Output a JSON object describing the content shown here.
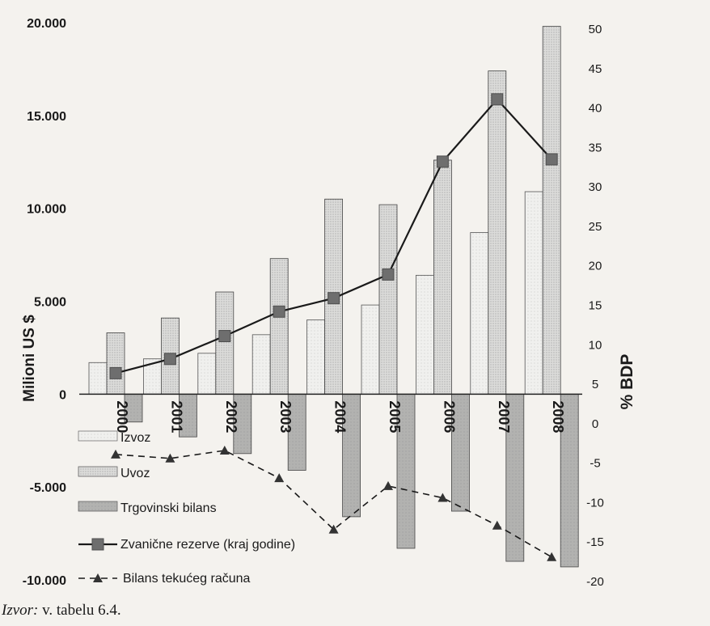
{
  "source": {
    "label": "Izvor:",
    "text": " v. tabelu 6.4."
  },
  "chart_data": {
    "type": "bar",
    "title": "",
    "categories": [
      "2000",
      "2001",
      "2002",
      "2003",
      "2004",
      "2005",
      "2006",
      "2007",
      "2008"
    ],
    "ylabel_left": "Milioni US $",
    "ylabel_right": "% BDP",
    "left_ticks": [
      "20.000",
      "15.000",
      "10.000",
      "5.000",
      "0",
      "-5.000",
      "-10.000"
    ],
    "right_ticks": [
      "50",
      "45",
      "40",
      "35",
      "30",
      "25",
      "20",
      "15",
      "10",
      "5",
      "0",
      "-5",
      "-10",
      "-15",
      "-20"
    ],
    "ylim_left": [
      -10000,
      20000
    ],
    "ylim_right": [
      -20,
      50
    ],
    "series": [
      {
        "name": "Izvoz",
        "type": "bar",
        "axis": "left",
        "color": "#ececec",
        "values": [
          1700,
          1900,
          2200,
          3200,
          4000,
          4800,
          6400,
          8700,
          10900
        ]
      },
      {
        "name": "Uvoz",
        "type": "bar",
        "axis": "left",
        "color": "#d6d6d6",
        "values": [
          3300,
          4100,
          5500,
          7300,
          10500,
          10200,
          12600,
          17400,
          19800
        ]
      },
      {
        "name": "Trgovinski bilans",
        "type": "bar",
        "axis": "left",
        "color": "#ababab",
        "values": [
          -1500,
          -2300,
          -3200,
          -4100,
          -6600,
          -8300,
          -6300,
          -9000,
          -9300
        ]
      },
      {
        "name": "Zvanične rezerve (kraj godine)",
        "type": "line",
        "axis": "right",
        "color": "#6e6e6e",
        "values": [
          6.3,
          8.1,
          11.0,
          14.1,
          15.8,
          18.8,
          33.1,
          41.0,
          33.4
        ]
      },
      {
        "name": "Bilans tekućeg računa",
        "type": "line",
        "axis": "right",
        "color": "#333333",
        "values": [
          -4.0,
          -4.5,
          -3.5,
          -7.0,
          -13.5,
          -8.0,
          -9.5,
          -13.0,
          -17.0
        ]
      }
    ]
  }
}
